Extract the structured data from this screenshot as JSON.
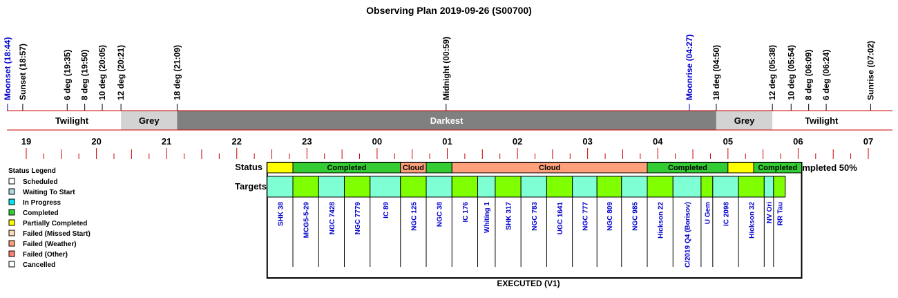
{
  "title": "Observing Plan 2019-09-26 (S00700)",
  "events": [
    {
      "label": "Moonset (18:44)",
      "time": "18:44",
      "color": "#0000cc"
    },
    {
      "label": "Sunset (18:57)",
      "time": "18:57",
      "color": "#000000"
    },
    {
      "label": "6 deg (19:35)",
      "time": "19:35",
      "color": "#000000"
    },
    {
      "label": "8 deg (19:50)",
      "time": "19:50",
      "color": "#000000"
    },
    {
      "label": "10 deg (20:05)",
      "time": "20:05",
      "color": "#000000"
    },
    {
      "label": "12 deg (20:21)",
      "time": "20:21",
      "color": "#000000"
    },
    {
      "label": "18 deg (21:09)",
      "time": "21:09",
      "color": "#000000"
    },
    {
      "label": "Midnight (00:59)",
      "time": "00:59",
      "color": "#000000"
    },
    {
      "label": "Moonrise (04:27)",
      "time": "04:27",
      "color": "#0000cc"
    },
    {
      "label": "18 deg (04:50)",
      "time": "04:50",
      "color": "#000000"
    },
    {
      "label": "12 deg (05:38)",
      "time": "05:38",
      "color": "#000000"
    },
    {
      "label": "10 deg (05:54)",
      "time": "05:54",
      "color": "#000000"
    },
    {
      "label": "8 deg (06:09)",
      "time": "06:09",
      "color": "#000000"
    },
    {
      "label": "6 deg (06:24)",
      "time": "06:24",
      "color": "#000000"
    },
    {
      "label": "Sunrise (07:02)",
      "time": "07:02",
      "color": "#000000"
    }
  ],
  "bands": [
    {
      "label": "Twilight",
      "start": "18:57",
      "end": "20:21",
      "color": "#ffffff",
      "text_color": "#000000"
    },
    {
      "label": "Grey",
      "start": "20:21",
      "end": "21:09",
      "color": "#d3d3d3",
      "text_color": "#000000"
    },
    {
      "label": "Darkest",
      "start": "21:09",
      "end": "04:50",
      "color": "#808080",
      "text_color": "#ffffff"
    },
    {
      "label": "Grey",
      "start": "04:50",
      "end": "05:38",
      "color": "#d3d3d3",
      "text_color": "#000000"
    },
    {
      "label": "Twilight",
      "start": "05:38",
      "end": "07:02",
      "color": "#ffffff",
      "text_color": "#000000"
    }
  ],
  "hours": [
    "19",
    "20",
    "21",
    "22",
    "23",
    "00",
    "01",
    "02",
    "03",
    "04",
    "05",
    "06",
    "07"
  ],
  "legend": {
    "title": "Status Legend",
    "items": [
      {
        "label": "Scheduled",
        "color": "#ffffff"
      },
      {
        "label": "Waiting To Start",
        "color": "#add8e6"
      },
      {
        "label": "In Progress",
        "color": "#00e5ee"
      },
      {
        "label": "Completed",
        "color": "#33cc33"
      },
      {
        "label": "Partially Completed",
        "color": "#ffff00"
      },
      {
        "label": "Failed (Missed Start)",
        "color": "#ffdab9"
      },
      {
        "label": "Failed (Weather)",
        "color": "#ffa07a"
      },
      {
        "label": "Failed (Other)",
        "color": "#fa8072"
      },
      {
        "label": "Cancelled",
        "color": "#ffffff"
      }
    ]
  },
  "status_row": {
    "label": "Status",
    "segments": [
      {
        "label": "",
        "status": "Partially Completed",
        "color": "#ffff00",
        "start": "22:26",
        "end": "22:48"
      },
      {
        "label": "Completed",
        "status": "Completed",
        "color": "#33cc33",
        "start": "22:48",
        "end": "00:20"
      },
      {
        "label": "Cloud",
        "status": "Failed (Weather)",
        "color": "#ffa07a",
        "start": "00:20",
        "end": "00:42"
      },
      {
        "label": "",
        "status": "Completed",
        "color": "#33cc33",
        "start": "00:42",
        "end": "01:04"
      },
      {
        "label": "Cloud",
        "status": "Failed (Weather)",
        "color": "#ffa07a",
        "start": "01:04",
        "end": "03:51"
      },
      {
        "label": "Completed",
        "status": "Completed",
        "color": "#33cc33",
        "start": "03:51",
        "end": "05:00"
      },
      {
        "label": "",
        "status": "Partially Completed",
        "color": "#ffff00",
        "start": "05:00",
        "end": "05:22"
      },
      {
        "label": "Completed",
        "status": "Completed",
        "color": "#33cc33",
        "start": "05:22",
        "end": "06:03"
      }
    ],
    "summary": "Completed 50%"
  },
  "targets_row": {
    "label": "Targets",
    "items": [
      {
        "name": "SHK 38",
        "start": "22:26",
        "end": "22:48",
        "color": "#7fffd4"
      },
      {
        "name": "MCG5-5-29",
        "start": "22:48",
        "end": "23:10",
        "color": "#7fff00"
      },
      {
        "name": "NGC 7428",
        "start": "23:10",
        "end": "23:32",
        "color": "#7fffd4"
      },
      {
        "name": "NGC 7779",
        "start": "23:32",
        "end": "23:54",
        "color": "#7fff00"
      },
      {
        "name": "IC 89",
        "start": "23:54",
        "end": "00:20",
        "color": "#7fffd4"
      },
      {
        "name": "NGC 125",
        "start": "00:20",
        "end": "00:42",
        "color": "#7fff00"
      },
      {
        "name": "NGC 38",
        "start": "00:42",
        "end": "01:04",
        "color": "#7fffd4"
      },
      {
        "name": "IC 176",
        "start": "01:04",
        "end": "01:26",
        "color": "#7fff00"
      },
      {
        "name": "Whiting 1",
        "start": "01:26",
        "end": "01:41",
        "color": "#7fffd4"
      },
      {
        "name": "SHK 317",
        "start": "01:41",
        "end": "02:03",
        "color": "#7fff00"
      },
      {
        "name": "NGC 783",
        "start": "02:03",
        "end": "02:25",
        "color": "#7fffd4"
      },
      {
        "name": "UGC 1641",
        "start": "02:25",
        "end": "02:47",
        "color": "#7fff00"
      },
      {
        "name": "NGC 777",
        "start": "02:47",
        "end": "03:08",
        "color": "#7fffd4"
      },
      {
        "name": "NGC 809",
        "start": "03:08",
        "end": "03:29",
        "color": "#7fff00"
      },
      {
        "name": "NGC 985",
        "start": "03:29",
        "end": "03:51",
        "color": "#7fffd4"
      },
      {
        "name": "Hickson 22",
        "start": "03:51",
        "end": "04:13",
        "color": "#7fff00"
      },
      {
        "name": "C/2019 Q4 (Borisov)",
        "start": "04:13",
        "end": "04:37",
        "color": "#7fffd4"
      },
      {
        "name": "U Gem",
        "start": "04:37",
        "end": "04:47",
        "color": "#7fff00"
      },
      {
        "name": "IC 2098",
        "start": "04:47",
        "end": "05:09",
        "color": "#7fffd4"
      },
      {
        "name": "Hickson 32",
        "start": "05:09",
        "end": "05:31",
        "color": "#7fff00"
      },
      {
        "name": "NV Ori",
        "start": "05:31",
        "end": "05:39",
        "color": "#7fffd4"
      },
      {
        "name": "RR Tau",
        "start": "05:39",
        "end": "05:49",
        "color": "#7fff00"
      }
    ]
  },
  "footer": "EXECUTED (V1)"
}
